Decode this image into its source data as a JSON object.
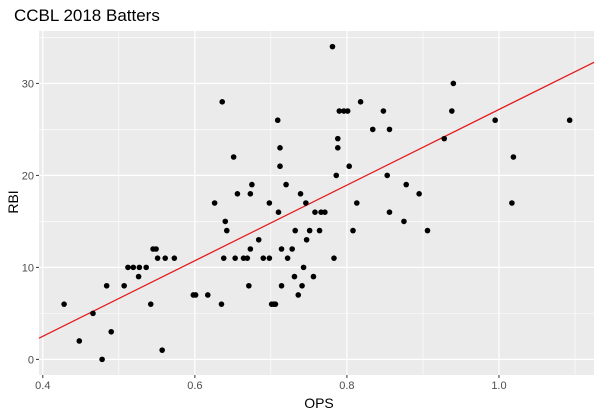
{
  "colors": {
    "panel": "#ebebeb",
    "grid_major": "#ffffff",
    "point": "#000000",
    "trend": "#e41a1c",
    "tick": "#4d4d4d"
  },
  "chart_data": {
    "type": "scatter",
    "title": "CCBL 2018 Batters",
    "xlabel": "OPS",
    "ylabel": "RBI",
    "xlim": [
      0.395,
      1.125
    ],
    "ylim": [
      -1.7,
      35.7
    ],
    "x_ticks": [
      0.4,
      0.6,
      0.8,
      1.0
    ],
    "x_tick_labels": [
      "0.4",
      "0.6",
      "0.8",
      "1.0"
    ],
    "y_ticks": [
      0,
      10,
      20,
      30
    ],
    "y_tick_labels": [
      "0",
      "10",
      "20",
      "30"
    ],
    "grid": true,
    "legend": "none",
    "trend_line": {
      "type": "linear fit",
      "color": "#e41a1c",
      "x": [
        0.395,
        1.125
      ],
      "y": [
        2.3,
        32.3
      ]
    },
    "points": [
      [
        0.428,
        6
      ],
      [
        0.448,
        2
      ],
      [
        0.466,
        5
      ],
      [
        0.478,
        0
      ],
      [
        0.484,
        8
      ],
      [
        0.49,
        3
      ],
      [
        0.507,
        8
      ],
      [
        0.512,
        10
      ],
      [
        0.519,
        10
      ],
      [
        0.526,
        9
      ],
      [
        0.527,
        10
      ],
      [
        0.536,
        10
      ],
      [
        0.542,
        6
      ],
      [
        0.545,
        12
      ],
      [
        0.549,
        12
      ],
      [
        0.551,
        11
      ],
      [
        0.557,
        1
      ],
      [
        0.561,
        11
      ],
      [
        0.573,
        11
      ],
      [
        0.598,
        7
      ],
      [
        0.601,
        7
      ],
      [
        0.617,
        7
      ],
      [
        0.626,
        17
      ],
      [
        0.635,
        6
      ],
      [
        0.636,
        28
      ],
      [
        0.638,
        11
      ],
      [
        0.64,
        15
      ],
      [
        0.642,
        14
      ],
      [
        0.651,
        22
      ],
      [
        0.653,
        11
      ],
      [
        0.656,
        18
      ],
      [
        0.664,
        11
      ],
      [
        0.669,
        11
      ],
      [
        0.671,
        8
      ],
      [
        0.673,
        12
      ],
      [
        0.673,
        18
      ],
      [
        0.675,
        19
      ],
      [
        0.684,
        13
      ],
      [
        0.69,
        11
      ],
      [
        0.698,
        17
      ],
      [
        0.698,
        11
      ],
      [
        0.701,
        6
      ],
      [
        0.704,
        6
      ],
      [
        0.706,
        6
      ],
      [
        0.709,
        26
      ],
      [
        0.71,
        16
      ],
      [
        0.712,
        21
      ],
      [
        0.712,
        23
      ],
      [
        0.714,
        12
      ],
      [
        0.714,
        8
      ],
      [
        0.72,
        19
      ],
      [
        0.722,
        11
      ],
      [
        0.728,
        12
      ],
      [
        0.731,
        9
      ],
      [
        0.732,
        14
      ],
      [
        0.736,
        7
      ],
      [
        0.739,
        18
      ],
      [
        0.741,
        8
      ],
      [
        0.743,
        10
      ],
      [
        0.746,
        17
      ],
      [
        0.747,
        13
      ],
      [
        0.751,
        14
      ],
      [
        0.756,
        9
      ],
      [
        0.758,
        16
      ],
      [
        0.764,
        14
      ],
      [
        0.766,
        16
      ],
      [
        0.771,
        16
      ],
      [
        0.781,
        34
      ],
      [
        0.783,
        11
      ],
      [
        0.786,
        20
      ],
      [
        0.788,
        24
      ],
      [
        0.788,
        23
      ],
      [
        0.79,
        27
      ],
      [
        0.796,
        27
      ],
      [
        0.801,
        27
      ],
      [
        0.803,
        21
      ],
      [
        0.808,
        14
      ],
      [
        0.813,
        17
      ],
      [
        0.818,
        28
      ],
      [
        0.834,
        25
      ],
      [
        0.848,
        27
      ],
      [
        0.853,
        20
      ],
      [
        0.856,
        25
      ],
      [
        0.856,
        16
      ],
      [
        0.875,
        15
      ],
      [
        0.878,
        19
      ],
      [
        0.895,
        18
      ],
      [
        0.906,
        14
      ],
      [
        0.928,
        24
      ],
      [
        0.938,
        27
      ],
      [
        0.94,
        30
      ],
      [
        0.995,
        26
      ],
      [
        1.017,
        17
      ],
      [
        1.019,
        22
      ],
      [
        1.093,
        26
      ]
    ]
  }
}
